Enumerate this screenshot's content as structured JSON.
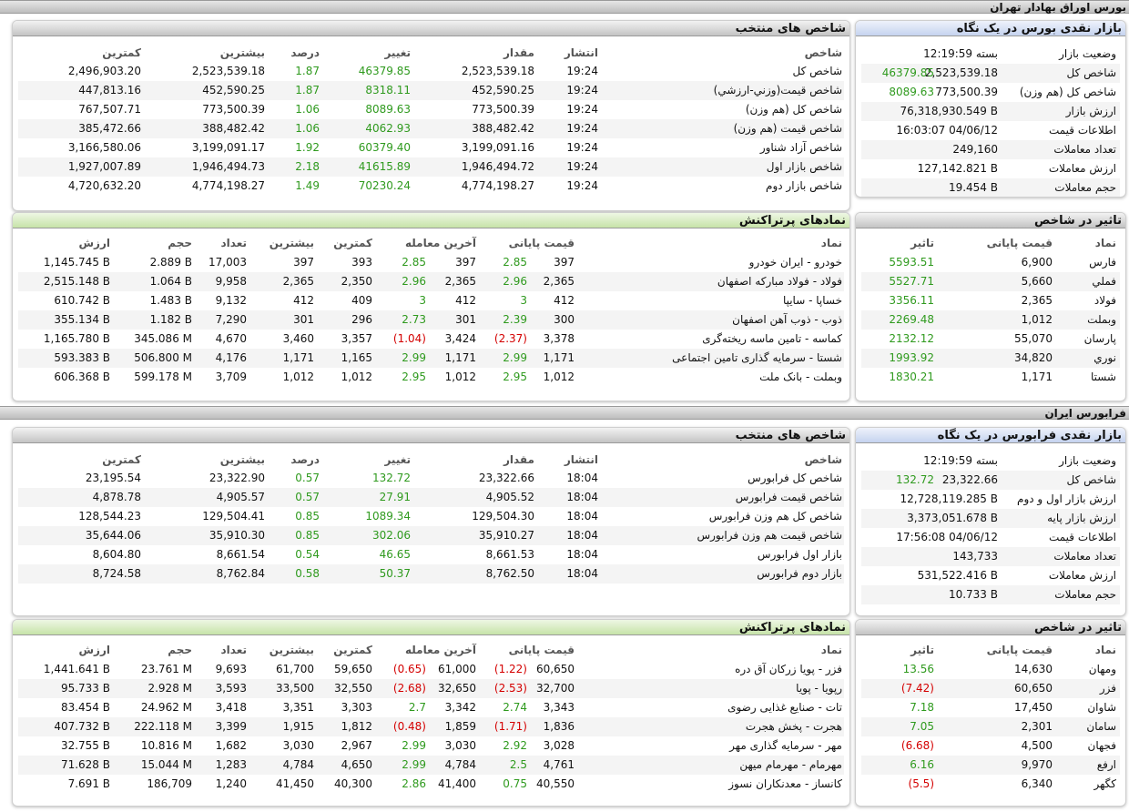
{
  "tehran": {
    "title": "بورس اوراق بهادار تهران",
    "glance": {
      "title": "بازار نقدی بورس در یک نگاه",
      "rows": [
        {
          "label": "وضعیت بازار",
          "value": "بسته 12:19:59",
          "change": ""
        },
        {
          "label": "شاخص کل",
          "value": "2,523,539.18",
          "change": "46379.85"
        },
        {
          "label": "شاخص کل (هم وزن)",
          "value": "773,500.39",
          "change": "8089.63"
        },
        {
          "label": "ارزش بازار",
          "value": "76,318,930.549 B",
          "change": ""
        },
        {
          "label": "اطلاعات قیمت",
          "value": "16:03:07 04/06/12",
          "change": ""
        },
        {
          "label": "تعداد معاملات",
          "value": "249,160",
          "change": ""
        },
        {
          "label": "ارزش معاملات",
          "value": "127,142.821 B",
          "change": ""
        },
        {
          "label": "حجم معاملات",
          "value": "19.454 B",
          "change": ""
        }
      ]
    },
    "indices": {
      "title": "شاخص های منتخب",
      "headers": {
        "name": "شاخص",
        "time": "انتشار",
        "value": "مقدار",
        "change": "تغییر",
        "percent": "درصد",
        "high": "بیشترین",
        "low": "کمترین"
      },
      "rows": [
        {
          "name": "شاخص کل",
          "time": "19:24",
          "value": "2,523,539.18",
          "change": "46379.85",
          "percent": "1.87",
          "high": "2,523,539.18",
          "low": "2,496,903.20"
        },
        {
          "name": "شاخص قیمت(وزني-ارزشي)",
          "time": "19:24",
          "value": "452,590.25",
          "change": "8318.11",
          "percent": "1.87",
          "high": "452,590.25",
          "low": "447,813.16"
        },
        {
          "name": "شاخص کل (هم وزن)",
          "time": "19:24",
          "value": "773,500.39",
          "change": "8089.63",
          "percent": "1.06",
          "high": "773,500.39",
          "low": "767,507.71"
        },
        {
          "name": "شاخص قیمت (هم وزن)",
          "time": "19:24",
          "value": "388,482.42",
          "change": "4062.93",
          "percent": "1.06",
          "high": "388,482.42",
          "low": "385,472.66"
        },
        {
          "name": "شاخص آزاد شناور",
          "time": "19:24",
          "value": "3,199,091.16",
          "change": "60379.40",
          "percent": "1.92",
          "high": "3,199,091.17",
          "low": "3,166,580.06"
        },
        {
          "name": "شاخص بازار اول",
          "time": "19:24",
          "value": "1,946,494.72",
          "change": "41615.89",
          "percent": "2.18",
          "high": "1,946,494.73",
          "low": "1,927,007.89"
        },
        {
          "name": "شاخص بازار دوم",
          "time": "19:24",
          "value": "4,774,198.27",
          "change": "70230.24",
          "percent": "1.49",
          "high": "4,774,198.27",
          "low": "4,720,632.20"
        }
      ]
    },
    "impact": {
      "title": "تاثیر در شاخص",
      "headers": {
        "symbol": "نماد",
        "close": "قیمت پایانی",
        "impact": "تاثیر"
      },
      "rows": [
        {
          "symbol": "فارس",
          "close": "6,900",
          "impact": "5593.51",
          "neg": false
        },
        {
          "symbol": "فملي",
          "close": "5,660",
          "impact": "5527.71",
          "neg": false
        },
        {
          "symbol": "فولاد",
          "close": "2,365",
          "impact": "3356.11",
          "neg": false
        },
        {
          "symbol": "وبملت",
          "close": "1,012",
          "impact": "2269.48",
          "neg": false
        },
        {
          "symbol": "پارسان",
          "close": "55,070",
          "impact": "2132.12",
          "neg": false
        },
        {
          "symbol": "نوري",
          "close": "34,820",
          "impact": "1993.92",
          "neg": false
        },
        {
          "symbol": "شستا",
          "close": "1,171",
          "impact": "1830.21",
          "neg": false
        }
      ]
    },
    "active": {
      "title": "نمادهای پرتراکنش",
      "headers": {
        "symbol": "نماد",
        "close": "قیمت پایانی",
        "last": "آخرین معامله",
        "low": "کمترین",
        "high": "بیشترین",
        "count": "تعداد",
        "volume": "حجم",
        "value": "ارزش"
      },
      "rows": [
        {
          "symbol": "خودرو - ایران خودرو",
          "close": "397",
          "close_ch": "2.85",
          "close_neg": false,
          "last": "397",
          "last_ch": "2.85",
          "last_neg": false,
          "low": "393",
          "high": "397",
          "count": "17,003",
          "volume": "2.889 B",
          "value": "1,145.745 B"
        },
        {
          "symbol": "فولاد - فولاد مبارکه اصفهان",
          "close": "2,365",
          "close_ch": "2.96",
          "close_neg": false,
          "last": "2,365",
          "last_ch": "2.96",
          "last_neg": false,
          "low": "2,350",
          "high": "2,365",
          "count": "9,958",
          "volume": "1.064 B",
          "value": "2,515.148 B"
        },
        {
          "symbol": "خساپا - سايپا",
          "close": "412",
          "close_ch": "3",
          "close_neg": false,
          "last": "412",
          "last_ch": "3",
          "last_neg": false,
          "low": "409",
          "high": "412",
          "count": "9,132",
          "volume": "1.483 B",
          "value": "610.742 B"
        },
        {
          "symbol": "ذوب - ذوب آهن اصفهان",
          "close": "300",
          "close_ch": "2.39",
          "close_neg": false,
          "last": "301",
          "last_ch": "2.73",
          "last_neg": false,
          "low": "296",
          "high": "301",
          "count": "7,290",
          "volume": "1.182 B",
          "value": "355.134 B"
        },
        {
          "symbol": "کماسه - تامین ماسه ریخته‌گری",
          "close": "3,378",
          "close_ch": "(2.37)",
          "close_neg": true,
          "last": "3,424",
          "last_ch": "(1.04)",
          "last_neg": true,
          "low": "3,357",
          "high": "3,460",
          "count": "4,670",
          "volume": "345.086 M",
          "value": "1,165.780 B"
        },
        {
          "symbol": "شستا - سرمایه گذاری تامین اجتماعی",
          "close": "1,171",
          "close_ch": "2.99",
          "close_neg": false,
          "last": "1,171",
          "last_ch": "2.99",
          "last_neg": false,
          "low": "1,165",
          "high": "1,171",
          "count": "4,176",
          "volume": "506.800 M",
          "value": "593.383 B"
        },
        {
          "symbol": "وبملت - بانک ملت",
          "close": "1,012",
          "close_ch": "2.95",
          "close_neg": false,
          "last": "1,012",
          "last_ch": "2.95",
          "last_neg": false,
          "low": "1,012",
          "high": "1,012",
          "count": "3,709",
          "volume": "599.178 M",
          "value": "606.368 B"
        }
      ]
    }
  },
  "farabourse": {
    "title": "فرابورس ایران",
    "glance": {
      "title": "بازار نقدی فرابورس در یک نگاه",
      "rows": [
        {
          "label": "وضعیت بازار",
          "value": "بسته 12:19:59",
          "change": ""
        },
        {
          "label": "شاخص کل",
          "value": "23,322.66",
          "change": "132.72"
        },
        {
          "label": "ارزش بازار اول و دوم",
          "value": "12,728,119.285 B",
          "change": ""
        },
        {
          "label": "ارزش بازار پایه",
          "value": "3,373,051.678 B",
          "change": ""
        },
        {
          "label": "اطلاعات قیمت",
          "value": "17:56:08 04/06/12",
          "change": ""
        },
        {
          "label": "تعداد معاملات",
          "value": "143,733",
          "change": ""
        },
        {
          "label": "ارزش معاملات",
          "value": "531,522.416 B",
          "change": ""
        },
        {
          "label": "حجم معاملات",
          "value": "10.733 B",
          "change": ""
        }
      ]
    },
    "indices": {
      "title": "شاخص های منتخب",
      "headers": {
        "name": "شاخص",
        "time": "انتشار",
        "value": "مقدار",
        "change": "تغییر",
        "percent": "درصد",
        "high": "بیشترین",
        "low": "کمترین"
      },
      "rows": [
        {
          "name": "شاخص کل فرابورس",
          "time": "18:04",
          "value": "23,322.66",
          "change": "132.72",
          "percent": "0.57",
          "high": "23,322.90",
          "low": "23,195.54"
        },
        {
          "name": "شاخص قیمت فرابورس",
          "time": "18:04",
          "value": "4,905.52",
          "change": "27.91",
          "percent": "0.57",
          "high": "4,905.57",
          "low": "4,878.78"
        },
        {
          "name": "شاخص کل هم وزن فرابورس",
          "time": "18:04",
          "value": "129,504.30",
          "change": "1089.34",
          "percent": "0.85",
          "high": "129,504.41",
          "low": "128,544.23"
        },
        {
          "name": "شاخص قیمت هم وزن فرابورس",
          "time": "18:04",
          "value": "35,910.27",
          "change": "302.06",
          "percent": "0.85",
          "high": "35,910.30",
          "low": "35,644.06"
        },
        {
          "name": "بازار اول فرابورس",
          "time": "18:04",
          "value": "8,661.53",
          "change": "46.65",
          "percent": "0.54",
          "high": "8,661.54",
          "low": "8,604.80"
        },
        {
          "name": "بازار دوم فرابورس",
          "time": "18:04",
          "value": "8,762.50",
          "change": "50.37",
          "percent": "0.58",
          "high": "8,762.84",
          "low": "8,724.58"
        }
      ]
    },
    "impact": {
      "title": "تاثیر در شاخص",
      "headers": {
        "symbol": "نماد",
        "close": "قیمت پایانی",
        "impact": "تاثیر"
      },
      "rows": [
        {
          "symbol": "ومهان",
          "close": "14,630",
          "impact": "13.56",
          "neg": false
        },
        {
          "symbol": "فزر",
          "close": "60,650",
          "impact": "(7.42)",
          "neg": true
        },
        {
          "symbol": "شاوان",
          "close": "17,450",
          "impact": "7.18",
          "neg": false
        },
        {
          "symbol": "سامان",
          "close": "2,301",
          "impact": "7.05",
          "neg": false
        },
        {
          "symbol": "فجهان",
          "close": "4,500",
          "impact": "(6.68)",
          "neg": true
        },
        {
          "symbol": "ارفع",
          "close": "9,970",
          "impact": "6.16",
          "neg": false
        },
        {
          "symbol": "کگهر",
          "close": "6,340",
          "impact": "(5.5)",
          "neg": true
        }
      ]
    },
    "active": {
      "title": "نمادهای پرتراکنش",
      "headers": {
        "symbol": "نماد",
        "close": "قیمت پایانی",
        "last": "آخرین معامله",
        "low": "کمترین",
        "high": "بیشترین",
        "count": "تعداد",
        "volume": "حجم",
        "value": "ارزش"
      },
      "rows": [
        {
          "symbol": "فزر - پویا زرکان آق دره",
          "close": "60,650",
          "close_ch": "(1.22)",
          "close_neg": true,
          "last": "61,000",
          "last_ch": "(0.65)",
          "last_neg": true,
          "low": "59,650",
          "high": "61,700",
          "count": "9,693",
          "volume": "23.761 M",
          "value": "1,441.641 B"
        },
        {
          "symbol": "رپویا - پویا",
          "close": "32,700",
          "close_ch": "(2.53)",
          "close_neg": true,
          "last": "32,650",
          "last_ch": "(2.68)",
          "last_neg": true,
          "low": "32,550",
          "high": "33,500",
          "count": "3,593",
          "volume": "2.928 M",
          "value": "95.733 B"
        },
        {
          "symbol": "تات - صنایع غذایی رضوی",
          "close": "3,343",
          "close_ch": "2.74",
          "close_neg": false,
          "last": "3,342",
          "last_ch": "2.7",
          "last_neg": false,
          "low": "3,303",
          "high": "3,351",
          "count": "3,418",
          "volume": "24.962 M",
          "value": "83.454 B"
        },
        {
          "symbol": "هجرت - پخش هجرت",
          "close": "1,836",
          "close_ch": "(1.71)",
          "close_neg": true,
          "last": "1,859",
          "last_ch": "(0.48)",
          "last_neg": true,
          "low": "1,812",
          "high": "1,915",
          "count": "3,399",
          "volume": "222.118 M",
          "value": "407.732 B"
        },
        {
          "symbol": "مهر - سرمایه گذاری مهر",
          "close": "3,028",
          "close_ch": "2.92",
          "close_neg": false,
          "last": "3,030",
          "last_ch": "2.99",
          "last_neg": false,
          "low": "2,967",
          "high": "3,030",
          "count": "1,682",
          "volume": "10.816 M",
          "value": "32.755 B"
        },
        {
          "symbol": "مهرمام - مهرمام میهن",
          "close": "4,761",
          "close_ch": "2.5",
          "close_neg": false,
          "last": "4,784",
          "last_ch": "2.99",
          "last_neg": false,
          "low": "4,650",
          "high": "4,784",
          "count": "1,283",
          "volume": "15.044 M",
          "value": "71.628 B"
        },
        {
          "symbol": "کانساز - معدنکاران نسوز",
          "close": "40,550",
          "close_ch": "0.75",
          "close_neg": false,
          "last": "41,400",
          "last_ch": "2.86",
          "last_neg": false,
          "low": "40,300",
          "high": "41,450",
          "count": "1,240",
          "volume": "186,709",
          "value": "7.691 B"
        }
      ]
    }
  }
}
